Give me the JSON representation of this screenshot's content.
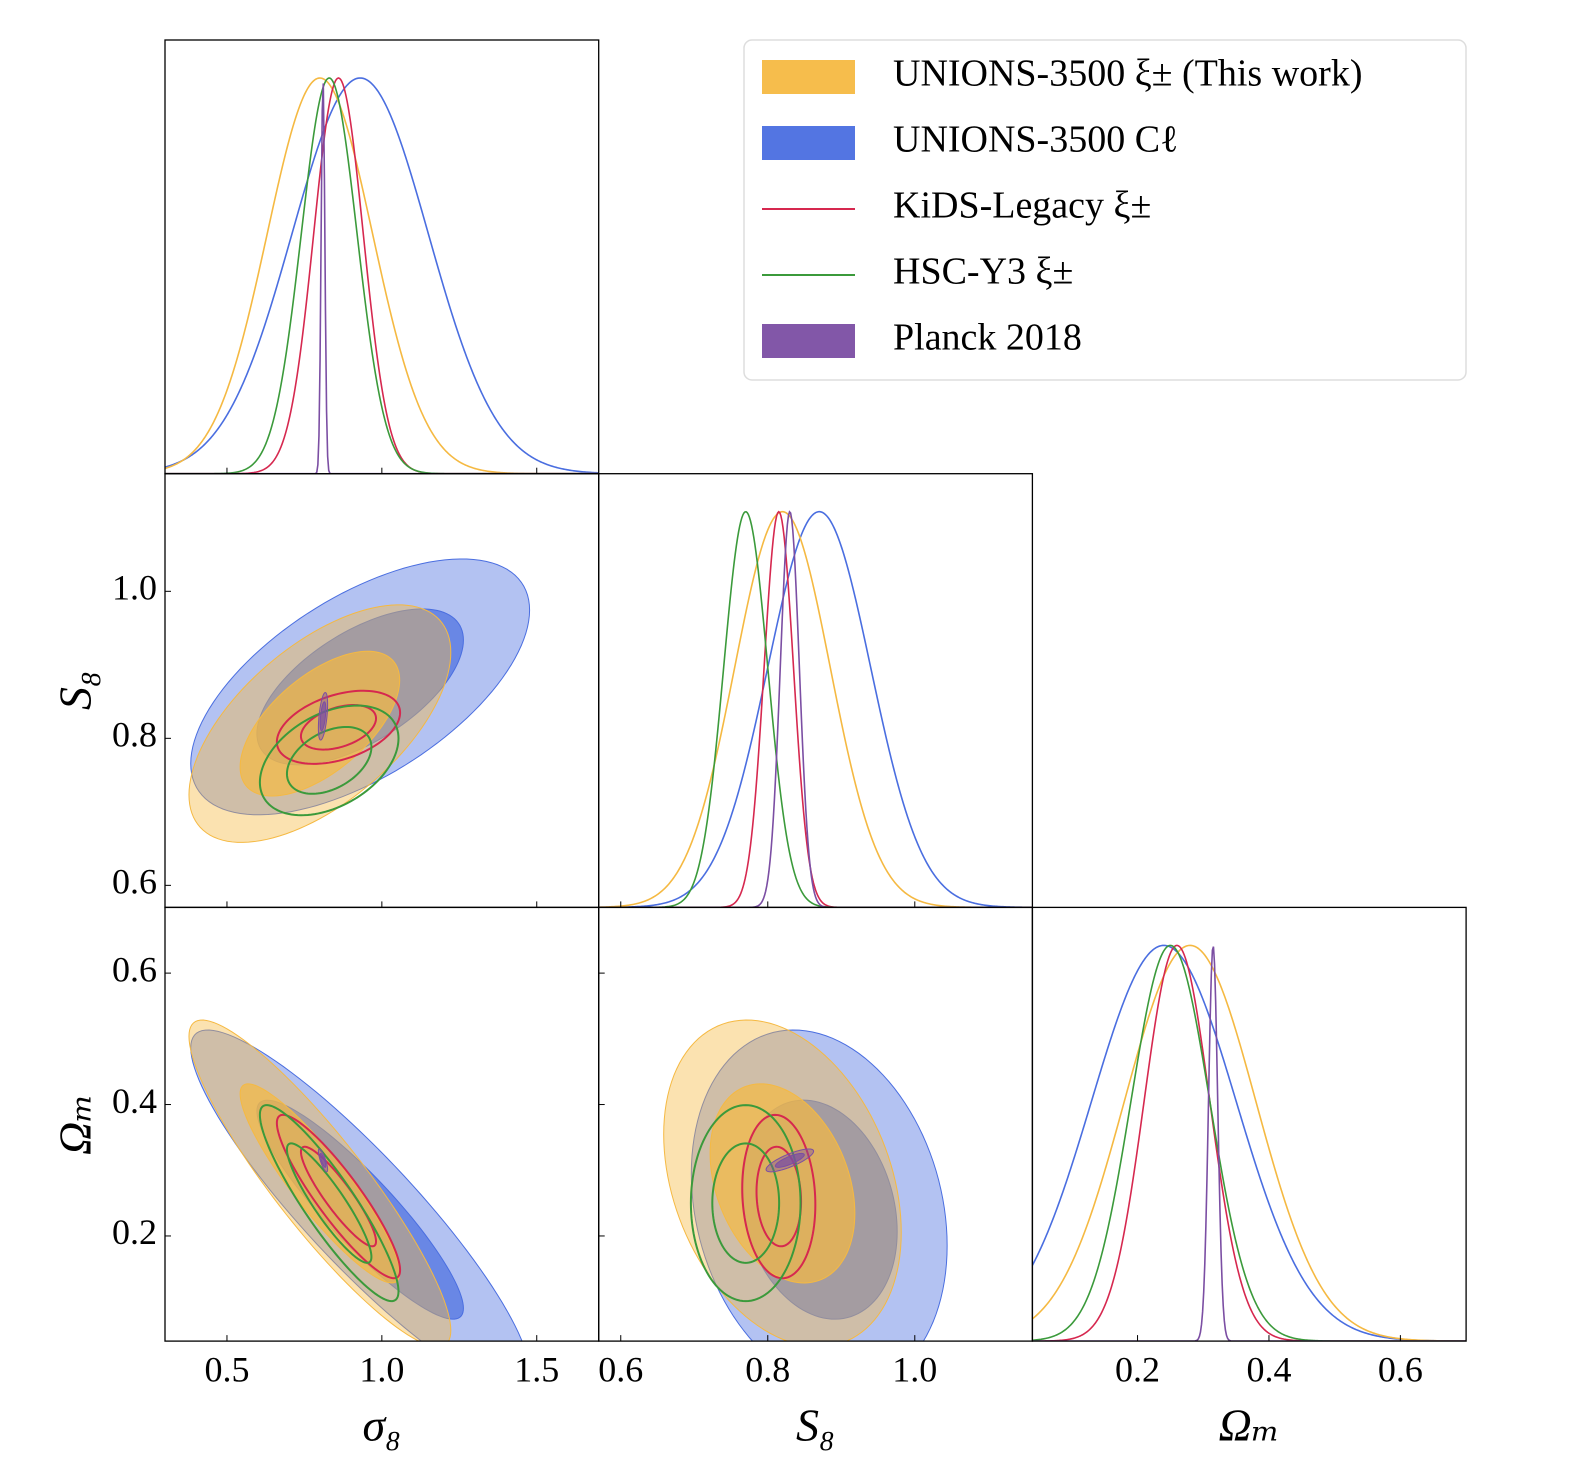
{
  "chart_data": {
    "type": "corner",
    "parameters": [
      {
        "label": "σ₈",
        "lim": [
          0.3,
          1.7
        ],
        "ticks": [
          0.5,
          {
            "value": 1,
            "label": "1.0"
          },
          1.5
        ]
      },
      {
        "label": "S₈",
        "lim": [
          0.57,
          1.16
        ],
        "ticks": [
          0.6,
          0.8,
          {
            "value": 1,
            "label": "1.0"
          }
        ]
      },
      {
        "label": "Ωₘ",
        "lim": [
          0.04,
          0.7
        ],
        "ticks": [
          0.2,
          0.4,
          0.6
        ]
      }
    ],
    "series": [
      {
        "name": "UNIONS-3500 ξ± (This work)",
        "color": "#f5b942",
        "style": "filled",
        "mean": [
          0.8,
          0.82,
          0.28
        ],
        "std": [
          0.17,
          0.065,
          0.1
        ],
        "corr": [
          0.6,
          -0.9,
          -0.3
        ]
      },
      {
        "name": "UNIONS-3500 Cℓ",
        "color": "#4a6ee0",
        "style": "filled",
        "mean": [
          0.93,
          0.87,
          0.24
        ],
        "std": [
          0.22,
          0.07,
          0.11
        ],
        "corr": [
          0.6,
          -0.9,
          -0.2
        ]
      },
      {
        "name": "KiDS-Legacy ξ±",
        "color": "#d6284f",
        "style": "line",
        "mean": [
          0.86,
          0.815,
          0.26
        ],
        "std": [
          0.08,
          0.02,
          0.05
        ],
        "corr": [
          0.4,
          -0.9,
          -0.1
        ]
      },
      {
        "name": "HSC-Y3 ξ±",
        "color": "#3b9a3b",
        "style": "line",
        "mean": [
          0.83,
          0.77,
          0.25
        ],
        "std": [
          0.09,
          0.03,
          0.06
        ],
        "corr": [
          0.4,
          -0.9,
          0.0
        ]
      },
      {
        "name": "Planck 2018",
        "color": "#7b4ea3",
        "style": "filled",
        "mean": [
          0.81,
          0.83,
          0.315
        ],
        "std": [
          0.006,
          0.013,
          0.007
        ],
        "corr": [
          0.5,
          -0.8,
          0.8
        ]
      }
    ],
    "legend": "upper right"
  }
}
